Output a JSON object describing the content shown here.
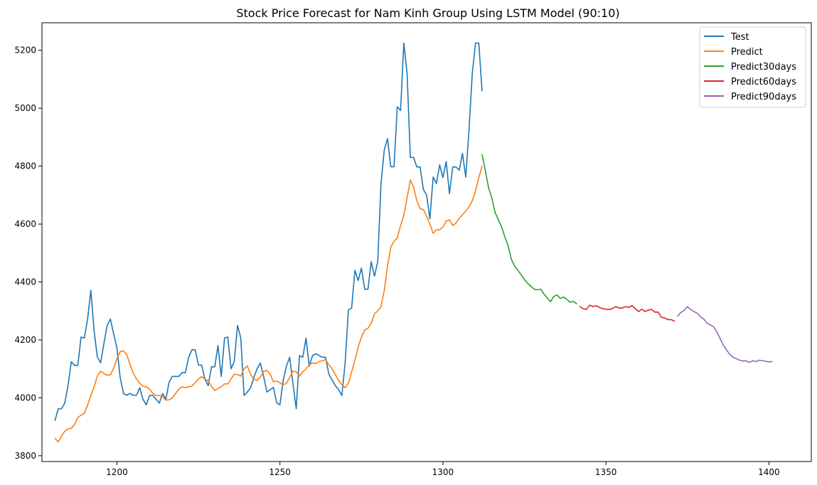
{
  "chart_data": {
    "type": "line",
    "title": "Stock Price Forecast for Nam Kinh Group Using LSTM Model (90:10)",
    "xlabel": "",
    "ylabel": "",
    "xlim": [
      1177,
      1413
    ],
    "ylim": [
      3780,
      5295
    ],
    "xticks": [
      1200,
      1250,
      1300,
      1350,
      1400
    ],
    "yticks": [
      3800,
      4000,
      4200,
      4400,
      4600,
      4800,
      5000,
      5200
    ],
    "grid": false,
    "legend": "top-right",
    "series": [
      {
        "name": "Test",
        "color": "#1f77b4",
        "x": [
          1181,
          1182,
          1183,
          1184,
          1185,
          1186,
          1187,
          1188,
          1189,
          1190,
          1191,
          1192,
          1193,
          1194,
          1195,
          1196,
          1197,
          1198,
          1199,
          1200,
          1201,
          1202,
          1203,
          1204,
          1205,
          1206,
          1207,
          1208,
          1209,
          1210,
          1211,
          1212,
          1213,
          1214,
          1215,
          1216,
          1217,
          1218,
          1219,
          1220,
          1221,
          1222,
          1223,
          1224,
          1225,
          1226,
          1227,
          1228,
          1229,
          1230,
          1231,
          1232,
          1233,
          1234,
          1235,
          1236,
          1237,
          1238,
          1239,
          1240,
          1241,
          1242,
          1243,
          1244,
          1245,
          1246,
          1247,
          1248,
          1249,
          1250,
          1251,
          1252,
          1253,
          1254,
          1255,
          1256,
          1257,
          1258,
          1259,
          1260,
          1261,
          1262,
          1263,
          1264,
          1265,
          1266,
          1267,
          1268,
          1269,
          1270,
          1271,
          1272,
          1273,
          1274,
          1275,
          1276,
          1277,
          1278,
          1279,
          1280,
          1281,
          1282,
          1283,
          1284,
          1285,
          1286,
          1287,
          1288,
          1289,
          1290,
          1291,
          1292,
          1293,
          1294,
          1295,
          1296,
          1297,
          1298,
          1299,
          1300,
          1301,
          1302,
          1303,
          1304,
          1305,
          1306,
          1307,
          1308,
          1309,
          1310,
          1311,
          1312
        ],
        "values": [
          3922,
          3962,
          3962,
          3982,
          4042,
          4125,
          4112,
          4112,
          4210,
          4206,
          4272,
          4371,
          4230,
          4140,
          4121,
          4187,
          4250,
          4272,
          4220,
          4172,
          4070,
          4015,
          4009,
          4015,
          4009,
          4009,
          4035,
          3995,
          3976,
          4008,
          4008,
          3995,
          3982,
          4015,
          3995,
          4054,
          4074,
          4074,
          4074,
          4087,
          4087,
          4140,
          4166,
          4166,
          4113,
          4113,
          4064,
          4042,
          4107,
          4107,
          4180,
          4074,
          4206,
          4210,
          4100,
          4126,
          4250,
          4206,
          4008,
          4020,
          4035,
          4070,
          4100,
          4120,
          4074,
          4020,
          4028,
          4036,
          3982,
          3976,
          4060,
          4110,
          4140,
          4048,
          3962,
          4146,
          4140,
          4206,
          4110,
          4146,
          4152,
          4146,
          4140,
          4140,
          4082,
          4062,
          4042,
          4028,
          4008,
          4120,
          4303,
          4310,
          4440,
          4405,
          4448,
          4375,
          4375,
          4470,
          4420,
          4470,
          4740,
          4855,
          4895,
          4798,
          4798,
          5005,
          4992,
          5225,
          5120,
          4830,
          4830,
          4797,
          4797,
          4719,
          4700,
          4618,
          4762,
          4740,
          4804,
          4760,
          4816,
          4705,
          4797,
          4797,
          4786,
          4844,
          4762,
          4925,
          5120,
          5225,
          5225,
          5060
        ]
      },
      {
        "name": "Predict",
        "color": "#ff7f0e",
        "x": [
          1181,
          1182,
          1183,
          1184,
          1185,
          1186,
          1187,
          1188,
          1189,
          1190,
          1191,
          1192,
          1193,
          1194,
          1195,
          1196,
          1197,
          1198,
          1199,
          1200,
          1201,
          1202,
          1203,
          1204,
          1205,
          1206,
          1207,
          1208,
          1209,
          1210,
          1211,
          1212,
          1213,
          1214,
          1215,
          1216,
          1217,
          1218,
          1219,
          1220,
          1221,
          1222,
          1223,
          1224,
          1225,
          1226,
          1227,
          1228,
          1229,
          1230,
          1231,
          1232,
          1233,
          1234,
          1235,
          1236,
          1237,
          1238,
          1239,
          1240,
          1241,
          1242,
          1243,
          1244,
          1245,
          1246,
          1247,
          1248,
          1249,
          1250,
          1251,
          1252,
          1253,
          1254,
          1255,
          1256,
          1257,
          1258,
          1259,
          1260,
          1261,
          1262,
          1263,
          1264,
          1265,
          1266,
          1267,
          1268,
          1269,
          1270,
          1271,
          1272,
          1273,
          1274,
          1275,
          1276,
          1277,
          1278,
          1279,
          1280,
          1281,
          1282,
          1283,
          1284,
          1285,
          1286,
          1287,
          1288,
          1289,
          1290,
          1291,
          1292,
          1293,
          1294,
          1295,
          1296,
          1297,
          1298,
          1299,
          1300,
          1301,
          1302,
          1303,
          1304,
          1305,
          1306,
          1307,
          1308,
          1309,
          1310,
          1311,
          1312
        ],
        "values": [
          3860,
          3848,
          3868,
          3885,
          3893,
          3895,
          3908,
          3932,
          3940,
          3947,
          3975,
          4008,
          4038,
          4075,
          4092,
          4084,
          4078,
          4080,
          4102,
          4135,
          4160,
          4162,
          4150,
          4115,
          4085,
          4065,
          4050,
          4040,
          4038,
          4030,
          4015,
          4008,
          4008,
          4004,
          3992,
          3993,
          4000,
          4015,
          4030,
          4038,
          4035,
          4038,
          4040,
          4052,
          4065,
          4073,
          4065,
          4058,
          4040,
          4025,
          4032,
          4038,
          4048,
          4048,
          4065,
          4082,
          4080,
          4075,
          4100,
          4110,
          4080,
          4065,
          4060,
          4072,
          4090,
          4095,
          4082,
          4055,
          4058,
          4052,
          4045,
          4050,
          4070,
          4092,
          4090,
          4075,
          4090,
          4100,
          4115,
          4120,
          4118,
          4125,
          4128,
          4132,
          4115,
          4100,
          4080,
          4060,
          4045,
          4035,
          4050,
          4090,
          4130,
          4175,
          4210,
          4234,
          4240,
          4258,
          4290,
          4300,
          4315,
          4370,
          4455,
          4520,
          4540,
          4552,
          4595,
          4630,
          4690,
          4752,
          4728,
          4680,
          4653,
          4650,
          4627,
          4600,
          4568,
          4580,
          4580,
          4590,
          4610,
          4615,
          4595,
          4603,
          4620,
          4632,
          4645,
          4660,
          4680,
          4715,
          4760,
          4800
        ]
      },
      {
        "name": "Predict30days",
        "color": "#2ca02c",
        "x": [
          1312,
          1313,
          1314,
          1315,
          1316,
          1317,
          1318,
          1319,
          1320,
          1321,
          1322,
          1323,
          1324,
          1325,
          1326,
          1327,
          1328,
          1329,
          1330,
          1331,
          1332,
          1333,
          1334,
          1335,
          1336,
          1337,
          1338,
          1339,
          1340,
          1341
        ],
        "values": [
          4840,
          4785,
          4725,
          4690,
          4640,
          4615,
          4590,
          4555,
          4525,
          4478,
          4455,
          4440,
          4425,
          4408,
          4395,
          4385,
          4375,
          4373,
          4375,
          4358,
          4345,
          4332,
          4350,
          4355,
          4343,
          4348,
          4340,
          4330,
          4333,
          4325
        ]
      },
      {
        "name": "Predict60days",
        "color": "#d62728",
        "x": [
          1342,
          1343,
          1344,
          1345,
          1346,
          1347,
          1348,
          1349,
          1350,
          1351,
          1352,
          1353,
          1354,
          1355,
          1356,
          1357,
          1358,
          1359,
          1360,
          1361,
          1362,
          1363,
          1364,
          1365,
          1366,
          1367,
          1368,
          1369,
          1370,
          1371
        ],
        "values": [
          4315,
          4308,
          4305,
          4320,
          4315,
          4318,
          4312,
          4308,
          4306,
          4305,
          4308,
          4315,
          4310,
          4310,
          4315,
          4312,
          4318,
          4308,
          4298,
          4306,
          4298,
          4303,
          4305,
          4296,
          4296,
          4278,
          4276,
          4270,
          4270,
          4265
        ]
      },
      {
        "name": "Predict90days",
        "color": "#9467bd",
        "x": [
          1372,
          1373,
          1374,
          1375,
          1376,
          1377,
          1378,
          1379,
          1380,
          1381,
          1382,
          1383,
          1384,
          1385,
          1386,
          1387,
          1388,
          1389,
          1390,
          1391,
          1392,
          1393,
          1394,
          1395,
          1396,
          1397,
          1398,
          1399,
          1400,
          1401
        ],
        "values": [
          4282,
          4295,
          4302,
          4315,
          4305,
          4298,
          4292,
          4280,
          4272,
          4258,
          4252,
          4245,
          4228,
          4205,
          4182,
          4165,
          4150,
          4140,
          4135,
          4130,
          4127,
          4128,
          4122,
          4128,
          4125,
          4130,
          4128,
          4126,
          4124,
          4125
        ]
      }
    ]
  }
}
